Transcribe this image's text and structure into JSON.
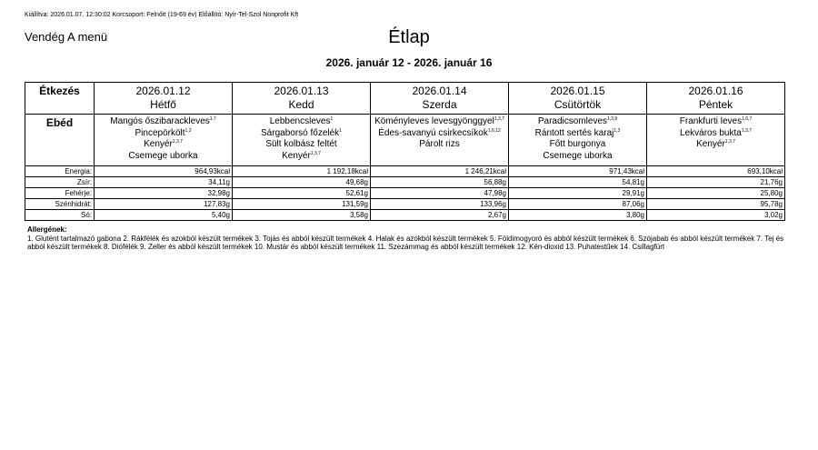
{
  "header": {
    "issued": "Kiállítva: 2026.01.07. 12:30:02 Korcsoport: Felnőtt (19-69 év) Előállító: Nyír-Tel-Szol Nonprofit Kft",
    "menu_name": "Vendég A menü",
    "title": "Étlap",
    "date_range": "2026. január 12 - 2026. január 16"
  },
  "table": {
    "meal_header": "Étkezés",
    "days": [
      {
        "date": "2026.01.12",
        "name": "Hétfő"
      },
      {
        "date": "2026.01.13",
        "name": "Kedd"
      },
      {
        "date": "2026.01.14",
        "name": "Szerda"
      },
      {
        "date": "2026.01.15",
        "name": "Csütörtök"
      },
      {
        "date": "2026.01.16",
        "name": "Péntek"
      }
    ],
    "meal": "Ebéd",
    "menus": [
      [
        {
          "name": "Mangós őszibarackleves",
          "allergens": "1,7"
        },
        {
          "name": "Pincepörkölt",
          "allergens": "1,2"
        },
        {
          "name": "Kenyér",
          "allergens": "1,3,7"
        },
        {
          "name": "Csemege uborka"
        }
      ],
      [
        {
          "name": "Lebbencsleves",
          "allergens": "1"
        },
        {
          "name": "Sárgaborsó főzelék",
          "allergens": "1"
        },
        {
          "name": "Sült kolbász feltét"
        },
        {
          "name": "Kenyér",
          "allergens": "1,3,7"
        }
      ],
      [
        {
          "name": "Köményleves levesgyönggyel",
          "allergens": "1,3,7"
        },
        {
          "name": "Édes-savanyú csirkecsíkok",
          "allergens": "1,6,12"
        },
        {
          "name": "Párolt rizs"
        }
      ],
      [
        {
          "name": "Paradicsomleves",
          "allergens": "1,3,9"
        },
        {
          "name": "Rántott sertés karaj",
          "allergens": "1,3"
        },
        {
          "name": "Főtt burgonya"
        },
        {
          "name": "Csemege uborka"
        }
      ],
      [
        {
          "name": "Frankfurti leves",
          "allergens": "1,6,7"
        },
        {
          "name": "Lekváros bukta",
          "allergens": "1,3,7"
        },
        {
          "name": "Kenyér",
          "allergens": "1,3,7"
        }
      ]
    ],
    "nutrition": [
      {
        "label": "Energia:",
        "values": [
          "964,93kcal",
          "1 192,18kcal",
          "1 246,21kcal",
          "971,43kcal",
          "693,10kcal"
        ]
      },
      {
        "label": "Zsír:",
        "values": [
          "34,11g",
          "49,68g",
          "56,88g",
          "54,81g",
          "21,76g"
        ]
      },
      {
        "label": "Fehérje:",
        "values": [
          "32,98g",
          "52,61g",
          "47,98g",
          "29,91g",
          "25,80g"
        ]
      },
      {
        "label": "Szénhidrát:",
        "values": [
          "127,83g",
          "131,59g",
          "133,96g",
          "87,06g",
          "95,78g"
        ]
      },
      {
        "label": "Só:",
        "values": [
          "5,40g",
          "3,58g",
          "2,67g",
          "3,80g",
          "3,02g"
        ]
      }
    ]
  },
  "allergens": {
    "title": "Allergének:",
    "text": "1. Glutént tartalmazó gabona 2. Rákfélék és azokból készült termékek 3. Tojás és abból készült termékek 4. Halak és azokból készült termékek 5. Földimogyoró és abból készült termékek 6. Szójabab és abból készült termékek 7. Tej és abból készült termékek 8. Diófélék 9. Zeller és abból készült termékek 10. Mustár és abból készült termékek 11. Szezámmag és abból készült termékek 12. Kén-dioxid 13. Puhatestűek 14. Csillagfürt"
  }
}
